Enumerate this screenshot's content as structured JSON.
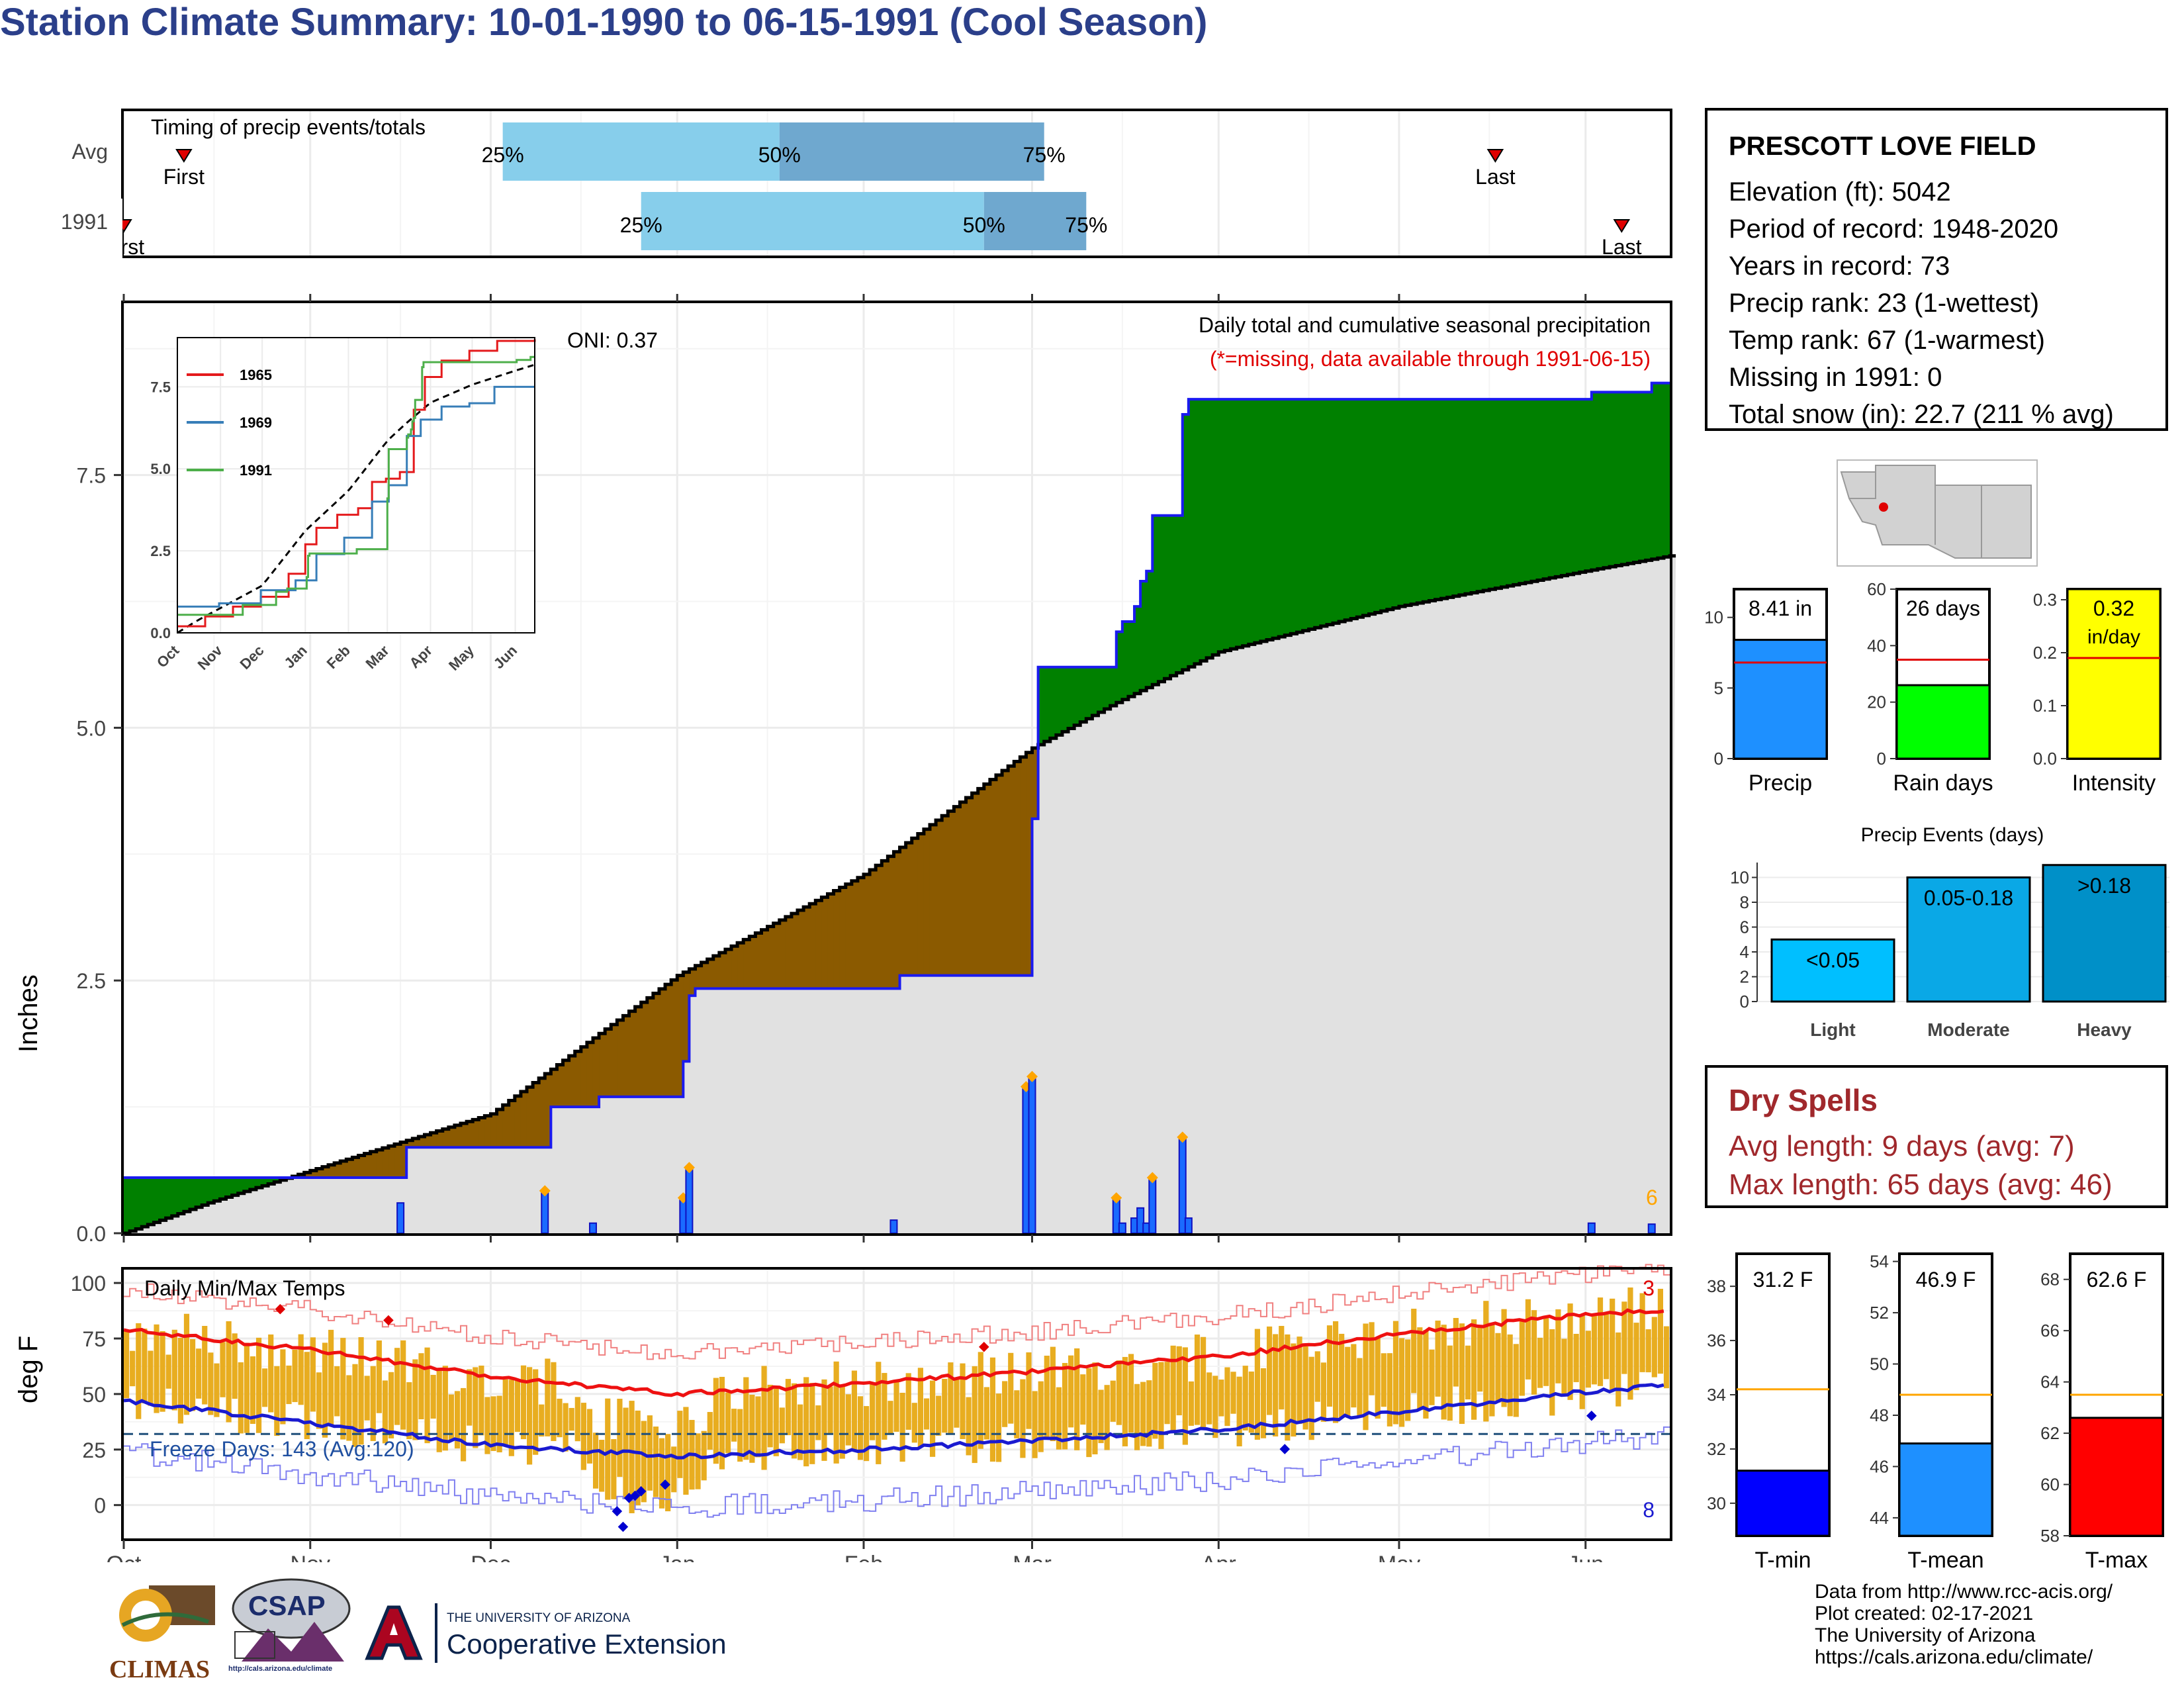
{
  "title": "Station Climate Summary: 10-01-1990 to 06-15-1991 (Cool Season)",
  "timing": {
    "header": "Timing of precip events/totals",
    "rows": [
      {
        "label": "Avg",
        "first_label": "First",
        "last_label": "Last",
        "p25": "25%",
        "p50": "50%",
        "p75": "75%"
      },
      {
        "label": "1991",
        "first_label": "First",
        "last_label": "Last",
        "p25": "25%",
        "p50": "50%",
        "p75": "75%"
      }
    ]
  },
  "precip": {
    "ylabel": "Inches",
    "yticks": [
      "0.0",
      "2.5",
      "5.0",
      "7.5"
    ],
    "oni": "ONI: 0.37",
    "subtitle": "Daily total and cumulative seasonal precipitation",
    "missing_note": "(*=missing, data available through 1991-06-15)",
    "corner_count": "6",
    "inset": {
      "yticks": [
        "0.0",
        "2.5",
        "5.0",
        "7.5"
      ],
      "xticks": [
        "Oct",
        "Nov",
        "Dec",
        "Jan",
        "Feb",
        "Mar",
        "Apr",
        "May",
        "Jun"
      ],
      "legend": [
        {
          "name": "1965",
          "color": "#e41a1c"
        },
        {
          "name": "1969",
          "color": "#377eb8"
        },
        {
          "name": "1991",
          "color": "#4daf4a"
        }
      ]
    }
  },
  "temps": {
    "ylabel": "deg F",
    "title": "Daily Min/Max Temps",
    "yticks": [
      "0",
      "25",
      "50",
      "75",
      "100"
    ],
    "freeze": "Freeze Days: 143 (Avg:120)",
    "count_high": "3",
    "count_low": "8"
  },
  "xaxis": [
    "Oct",
    "Nov",
    "Dec",
    "Jan",
    "Feb",
    "Mar",
    "Apr",
    "May",
    "Jun"
  ],
  "station": {
    "name": "PRESCOTT LOVE FIELD",
    "lines": [
      "Elevation (ft): 5042",
      "Period of record: 1948-2020",
      "Years in record: 73",
      "Precip rank: 23 (1-wettest)",
      "Temp rank: 67 (1-warmest)",
      "Missing in 1991: 0",
      "Total snow (in): 22.7 (211 % avg)"
    ]
  },
  "mini": {
    "precip": {
      "label": "8.41 in",
      "axis": "Precip",
      "ticks": [
        "0",
        "5",
        "10"
      ]
    },
    "rain": {
      "label": "26 days",
      "axis": "Rain days",
      "ticks": [
        "0",
        "20",
        "40",
        "60"
      ]
    },
    "intensity": {
      "label_a": "0.32",
      "label_b": "in/day",
      "axis": "Intensity",
      "ticks": [
        "0.0",
        "0.1",
        "0.2",
        "0.3"
      ]
    }
  },
  "events": {
    "title": "Precip Events (days)",
    "ticks": [
      "0",
      "2",
      "4",
      "6",
      "8",
      "10"
    ],
    "bars": [
      {
        "label": "<0.05",
        "cat": "Light"
      },
      {
        "label": "0.05-0.18",
        "cat": "Moderate"
      },
      {
        "label": ">0.18",
        "cat": "Heavy"
      }
    ]
  },
  "dry": {
    "title": "Dry Spells",
    "avg": "Avg length: 9 days (avg: 7)",
    "max": "Max length: 65 days (avg: 46)"
  },
  "tbars": {
    "tmin": {
      "label": "31.2 F",
      "axis": "T-min",
      "ticks": [
        "30",
        "32",
        "34",
        "36",
        "38"
      ]
    },
    "tmean": {
      "label": "46.9 F",
      "axis": "T-mean",
      "ticks": [
        "44",
        "46",
        "48",
        "50",
        "52",
        "54"
      ]
    },
    "tmax": {
      "label": "62.6 F",
      "axis": "T-max",
      "ticks": [
        "58",
        "60",
        "62",
        "64",
        "66",
        "68"
      ]
    }
  },
  "credits": [
    "Data from http://www.rcc-acis.org/",
    "Plot created: 02-17-2021",
    "The University of Arizona",
    "https://cals.arizona.edu/climate/"
  ],
  "logos": {
    "climas": "CLIMAS",
    "csap": "CSAP",
    "csap_url": "http://cals.arizona.edu/climate",
    "ua_small": "THE UNIVERSITY OF ARIZONA",
    "ua_big": "Cooperative Extension"
  },
  "chart_data": {
    "type": "area",
    "title": "Daily total and cumulative seasonal precipitation",
    "ylabel": "Inches",
    "ylim": [
      0,
      9.2
    ],
    "x_months": [
      "Oct",
      "Nov",
      "Dec",
      "Jan",
      "Feb",
      "Mar",
      "Apr",
      "May",
      "Jun"
    ],
    "series": [
      {
        "name": "1991",
        "points": [
          [
            "1990-10-01",
            0.55
          ],
          [
            "1990-11-16",
            0.55
          ],
          [
            "1990-11-17",
            0.85
          ],
          [
            "1990-12-10",
            0.85
          ],
          [
            "1990-12-11",
            1.25
          ],
          [
            "1990-12-18",
            1.25
          ],
          [
            "1990-12-19",
            1.35
          ],
          [
            "1991-01-01",
            1.35
          ],
          [
            "1991-01-02",
            1.7
          ],
          [
            "1991-01-03",
            2.35
          ],
          [
            "1991-01-04",
            2.42
          ],
          [
            "1991-02-06",
            2.42
          ],
          [
            "1991-02-07",
            2.55
          ],
          [
            "1991-02-28",
            2.55
          ],
          [
            "1991-03-01",
            4.1
          ],
          [
            "1991-03-02",
            5.6
          ],
          [
            "1991-03-14",
            5.6
          ],
          [
            "1991-03-15",
            5.95
          ],
          [
            "1991-03-16",
            6.05
          ],
          [
            "1991-03-18",
            6.2
          ],
          [
            "1991-03-19",
            6.45
          ],
          [
            "1991-03-20",
            6.55
          ],
          [
            "1991-03-21",
            7.1
          ],
          [
            "1991-03-25",
            7.1
          ],
          [
            "1991-03-26",
            8.1
          ],
          [
            "1991-03-27",
            8.25
          ],
          [
            "1991-06-01",
            8.25
          ],
          [
            "1991-06-02",
            8.32
          ],
          [
            "1991-06-11",
            8.32
          ],
          [
            "1991-06-12",
            8.41
          ],
          [
            "1991-06-15",
            8.41
          ]
        ]
      },
      {
        "name": "Average",
        "points": [
          [
            "1990-10-01",
            0.0
          ],
          [
            "1990-10-15",
            0.3
          ],
          [
            "1990-11-01",
            0.62
          ],
          [
            "1990-12-01",
            1.18
          ],
          [
            "1991-01-01",
            2.55
          ],
          [
            "1991-02-01",
            3.55
          ],
          [
            "1991-03-01",
            4.8
          ],
          [
            "1991-03-15",
            5.25
          ],
          [
            "1991-04-01",
            5.75
          ],
          [
            "1991-05-01",
            6.2
          ],
          [
            "1991-06-01",
            6.55
          ],
          [
            "1991-06-15",
            6.7
          ]
        ]
      }
    ],
    "daily": [
      [
        "1990-11-16",
        0.3
      ],
      [
        "1990-12-10",
        0.42
      ],
      [
        "1990-12-18",
        0.1
      ],
      [
        "1991-01-02",
        0.35
      ],
      [
        "1991-01-03",
        0.65
      ],
      [
        "1991-02-06",
        0.13
      ],
      [
        "1991-02-28",
        1.45
      ],
      [
        "1991-03-01",
        1.55
      ],
      [
        "1991-03-15",
        0.35
      ],
      [
        "1991-03-16",
        0.1
      ],
      [
        "1991-03-18",
        0.15
      ],
      [
        "1991-03-19",
        0.25
      ],
      [
        "1991-03-20",
        0.1
      ],
      [
        "1991-03-21",
        0.55
      ],
      [
        "1991-03-26",
        0.95
      ],
      [
        "1991-03-27",
        0.15
      ],
      [
        "1991-06-02",
        0.1
      ],
      [
        "1991-06-12",
        0.09
      ]
    ],
    "temps": {
      "avg_max": [
        [
          0,
          79
        ],
        [
          31,
          70
        ],
        [
          61,
          58
        ],
        [
          92,
          50
        ],
        [
          123,
          55
        ],
        [
          151,
          60
        ],
        [
          182,
          67
        ],
        [
          212,
          77
        ],
        [
          243,
          86
        ],
        [
          257,
          88
        ]
      ],
      "avg_min": [
        [
          0,
          47
        ],
        [
          31,
          37
        ],
        [
          61,
          27
        ],
        [
          92,
          22
        ],
        [
          123,
          25
        ],
        [
          151,
          29
        ],
        [
          182,
          34
        ],
        [
          212,
          42
        ],
        [
          243,
          51
        ],
        [
          257,
          54
        ]
      ],
      "freeze_line": 32
    },
    "mini_bars": {
      "precip_in": 8.41,
      "precip_avg": 6.8,
      "rain_days": 26,
      "rain_days_avg": 35,
      "intensity": 0.32,
      "intensity_avg": 0.19,
      "events": [
        5,
        10,
        11
      ],
      "tmin": 31.2,
      "tmin_avg": 34.2,
      "tmean": 46.9,
      "tmean_avg": 48.8,
      "tmax": 62.6,
      "tmax_avg": 63.5
    }
  }
}
